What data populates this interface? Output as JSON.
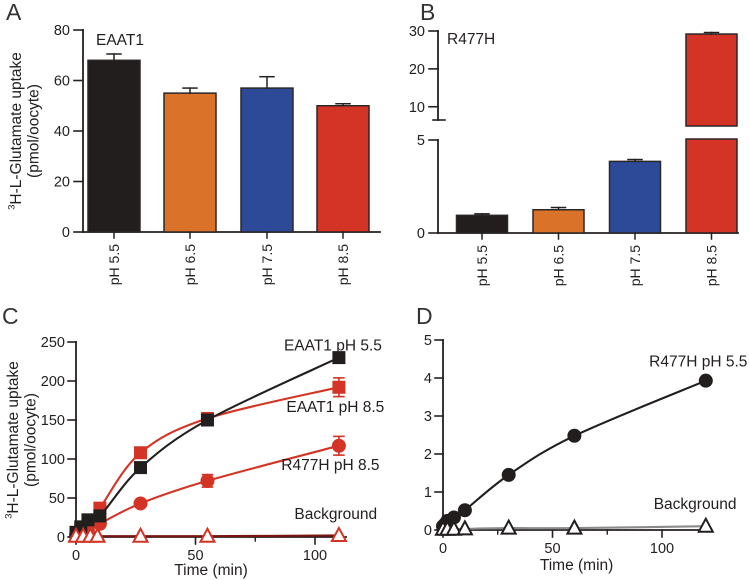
{
  "colors": {
    "black": "#221e1e",
    "orange": "#db7229",
    "blue": "#2d4a99",
    "red": "#d43425",
    "dark_red": "#7a1510",
    "gray": "#8a8a8a",
    "ink": "#242020",
    "bar_stroke": "#2b2727"
  },
  "panel_letters": {
    "a": "A",
    "b": "B",
    "c": "C",
    "d": "D"
  },
  "axis_labels": {
    "uptake_sup": "3",
    "uptake_main": "H-L-Glutamate uptake",
    "uptake_unit": "(pmol/oocyte)"
  },
  "chart_data": [
    {
      "id": "A",
      "type": "bar",
      "title": "EAAT1",
      "ylabel": "3H-L-Glutamate uptake (pmol/oocyte)",
      "ylim": [
        0,
        80
      ],
      "yticks": [
        0,
        20,
        40,
        60,
        80
      ],
      "categories": [
        "pH 5.5",
        "pH 6.5",
        "pH 7.5",
        "pH 8.5"
      ],
      "values": [
        68,
        55,
        57,
        50
      ],
      "errors": [
        2.5,
        2,
        4.5,
        0.8
      ],
      "bar_colors": [
        "black",
        "orange",
        "blue",
        "red"
      ]
    },
    {
      "id": "B",
      "type": "bar_broken_axis",
      "title": "R477H",
      "axis_lower": {
        "lim": [
          0,
          5
        ],
        "ticks": [
          0,
          5
        ]
      },
      "axis_upper": {
        "lim": [
          6.5,
          30
        ],
        "ticks": [
          10,
          20,
          30
        ]
      },
      "categories": [
        "pH 5.5",
        "pH 6.5",
        "pH 7.5",
        "pH 8.5"
      ],
      "values": [
        0.95,
        1.25,
        3.85,
        29.2
      ],
      "errors": [
        0.08,
        0.12,
        0.1,
        0.4
      ],
      "bar_colors": [
        "black",
        "orange",
        "blue",
        "red"
      ]
    },
    {
      "id": "C",
      "type": "line",
      "ylabel": "3H-L-Glutamate uptake (pmol/oocyte)",
      "xlabel": "Time (min)",
      "xlim": [
        0,
        113
      ],
      "xticks": [
        0,
        50,
        100
      ],
      "xminorticks": [
        25,
        75
      ],
      "ylim": [
        0,
        250
      ],
      "yticks": [
        0,
        50,
        100,
        150,
        200,
        250
      ],
      "series": [
        {
          "name": "EAAT1 pH 8.5",
          "marker": "square",
          "color": "red",
          "line_color": "red",
          "x": [
            0,
            2,
            5,
            10,
            27,
            55,
            110
          ],
          "y": [
            4,
            8,
            15,
            37,
            108,
            152,
            192
          ],
          "err": [
            0,
            0,
            0,
            0,
            5,
            0,
            12
          ]
        },
        {
          "name": "R477H pH 8.5",
          "marker": "circle",
          "color": "red",
          "line_color": "red",
          "x": [
            0,
            5,
            10,
            27,
            55,
            110
          ],
          "y": [
            3,
            8,
            17,
            43,
            72,
            117
          ],
          "err": [
            0,
            0,
            0,
            0,
            8,
            12
          ]
        },
        {
          "name": "EAAT1 pH 5.5",
          "marker": "square",
          "color": "black",
          "line_color": "black",
          "x": [
            0,
            2,
            5,
            10,
            27,
            55,
            110
          ],
          "y": [
            6,
            13,
            22,
            27,
            89,
            150,
            230
          ],
          "err": [
            0,
            0,
            0,
            0,
            0,
            0,
            0
          ]
        },
        {
          "name": "Background",
          "marker": "triangle_open",
          "color": "red",
          "line_color": "dark_red",
          "x": [
            0,
            3,
            6,
            9,
            27,
            55,
            110
          ],
          "y": [
            1,
            1,
            1,
            1,
            1,
            1,
            2
          ],
          "err": [
            0,
            0,
            0,
            0,
            0,
            0,
            0
          ]
        }
      ],
      "annotations": [
        {
          "text": "EAAT1 pH 5.5",
          "t": 128,
          "v": 246,
          "anchor": "end"
        },
        {
          "text": "EAAT1 pH 8.5",
          "t": 129,
          "v": 167,
          "anchor": "end"
        },
        {
          "text": "R477H pH 8.5",
          "t": 127,
          "v": 93,
          "anchor": "end"
        },
        {
          "text": "Background",
          "t": 126,
          "v": 30,
          "anchor": "end"
        }
      ]
    },
    {
      "id": "D",
      "type": "line",
      "xlabel": "Time (min)",
      "xlim": [
        0,
        122
      ],
      "xticks": [
        0,
        50,
        100
      ],
      "xminorticks": [
        25,
        75
      ],
      "ylim": [
        0,
        5
      ],
      "yticks": [
        0,
        1,
        2,
        3,
        4,
        5
      ],
      "series": [
        {
          "name": "R477H pH 5.5",
          "marker": "circle",
          "color": "black",
          "line_color": "black",
          "x": [
            0,
            1,
            2,
            5,
            10,
            30,
            60,
            120
          ],
          "y": [
            0.1,
            0.16,
            0.24,
            0.33,
            0.52,
            1.45,
            2.48,
            3.93
          ],
          "err": [
            0,
            0,
            0,
            0,
            0,
            0,
            0,
            0
          ]
        },
        {
          "name": "Background",
          "marker": "triangle_open",
          "color": "black",
          "line_color": "gray",
          "x": [
            0,
            2,
            5,
            10,
            30,
            60,
            120
          ],
          "y": [
            0.02,
            0.02,
            0.02,
            0.03,
            0.05,
            0.05,
            0.1
          ],
          "err": [
            0,
            0,
            0,
            0,
            0,
            0,
            0
          ]
        }
      ],
      "annotations": [
        {
          "text": "R477H pH 5.5",
          "t": 139,
          "v": 4.45,
          "anchor": "end"
        },
        {
          "text": "Background",
          "t": 134,
          "v": 0.7,
          "anchor": "end"
        }
      ]
    }
  ]
}
